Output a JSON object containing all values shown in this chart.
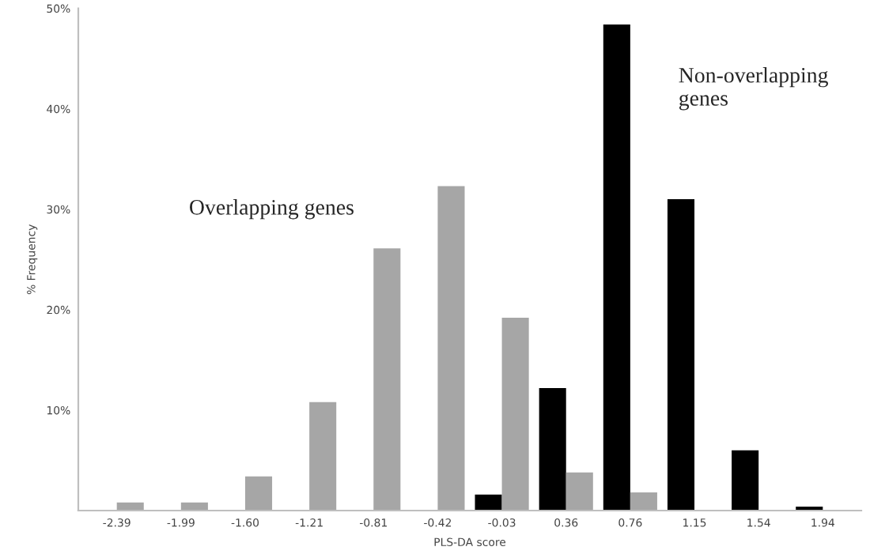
{
  "chart_data": {
    "type": "bar",
    "xlabel": "PLS-DA score",
    "ylabel": "% Frequency",
    "categories": [
      "-2.39",
      "-1.99",
      "-1.60",
      "-1.21",
      "-0.81",
      "-0.42",
      "-0.03",
      "0.36",
      "0.76",
      "1.15",
      "1.54",
      "1.94"
    ],
    "series": [
      {
        "name": "Non-overlapping genes",
        "color": "#000000",
        "values": [
          null,
          null,
          null,
          null,
          null,
          null,
          1.6,
          12.2,
          48.4,
          31.0,
          6.0,
          0.4
        ]
      },
      {
        "name": "Overlapping genes",
        "color": "#a6a6a6",
        "values": [
          0.8,
          0.8,
          3.4,
          10.8,
          26.1,
          32.3,
          19.2,
          3.8,
          1.8,
          null,
          null,
          null
        ]
      }
    ],
    "ylim": [
      0,
      50
    ],
    "yticks": [
      {
        "value": 10,
        "label": "10%"
      },
      {
        "value": 20,
        "label": "20%"
      },
      {
        "value": 30,
        "label": "30%"
      },
      {
        "value": 40,
        "label": "40%"
      },
      {
        "value": 50,
        "label": "50%"
      }
    ],
    "grid": false,
    "legend": false
  }
}
